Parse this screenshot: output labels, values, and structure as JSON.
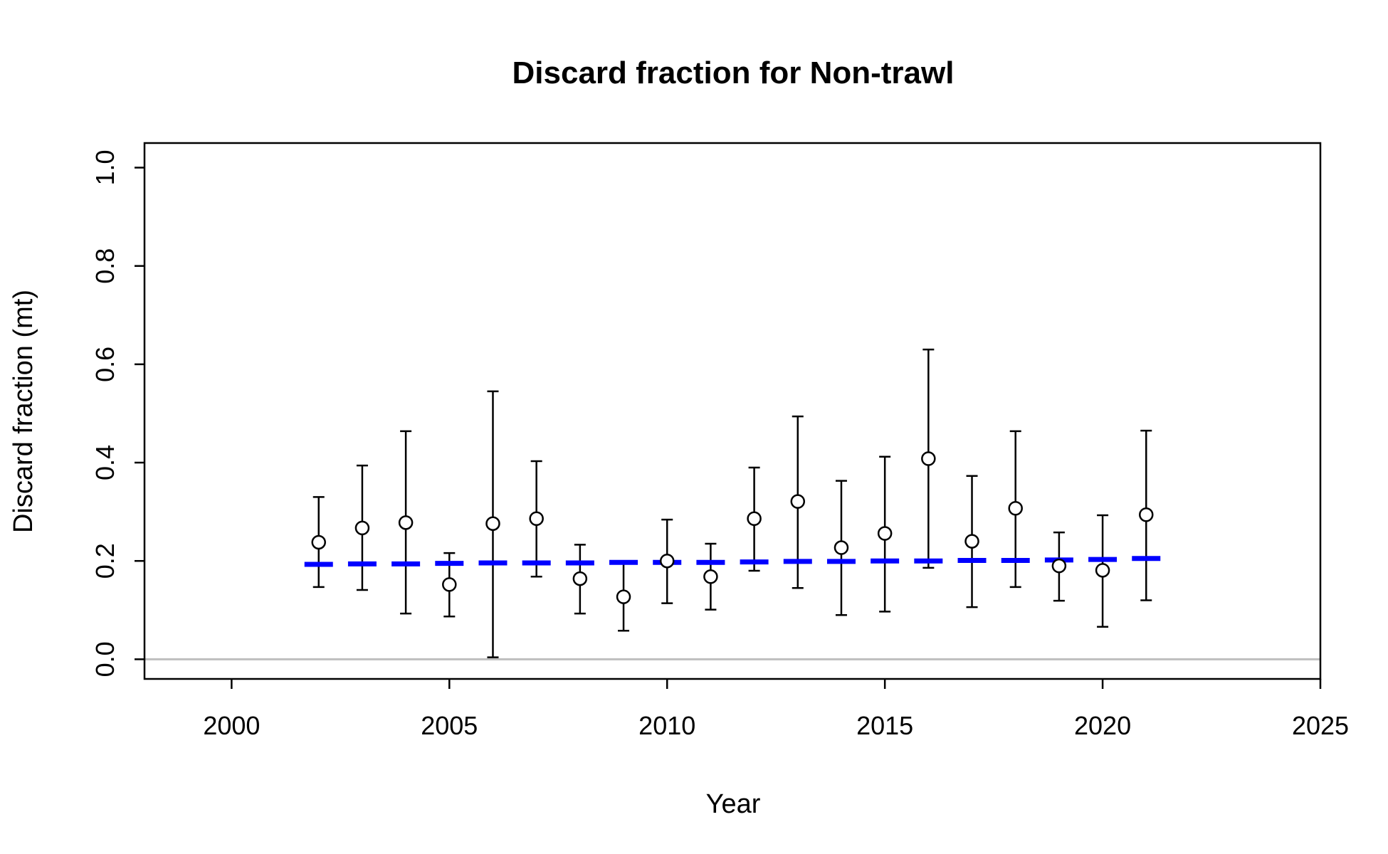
{
  "chart_data": {
    "type": "scatter",
    "title": "Discard fraction for Non-trawl",
    "xlabel": "Year",
    "ylabel": "Discard fraction (mt)",
    "xlim": [
      1998,
      2025
    ],
    "ylim": [
      -0.04,
      1.05
    ],
    "xticks": [
      "2000",
      "2005",
      "2010",
      "2015",
      "2020",
      "2025"
    ],
    "yticks": [
      "0.0",
      "0.2",
      "0.4",
      "0.6",
      "0.8",
      "1.0"
    ],
    "reference_line": {
      "y": 0.0,
      "color": "#bebebe"
    },
    "colors": {
      "observed": "#000000",
      "expected": "#0000ff",
      "frame": "#000000"
    },
    "series": [
      {
        "kind": "observed",
        "x": [
          2002,
          2003,
          2004,
          2005,
          2006,
          2007,
          2008,
          2009,
          2010,
          2011,
          2012,
          2013,
          2014,
          2015,
          2016,
          2017,
          2018,
          2019,
          2020,
          2021
        ],
        "y": [
          0.238,
          0.267,
          0.278,
          0.152,
          0.276,
          0.286,
          0.164,
          0.127,
          0.2,
          0.168,
          0.286,
          0.321,
          0.227,
          0.256,
          0.408,
          0.24,
          0.307,
          0.19,
          0.181,
          0.294
        ],
        "lower": [
          0.147,
          0.141,
          0.093,
          0.087,
          0.004,
          0.168,
          0.093,
          0.058,
          0.114,
          0.101,
          0.18,
          0.145,
          0.09,
          0.097,
          0.186,
          0.106,
          0.147,
          0.119,
          0.066,
          0.12
        ],
        "upper": [
          0.33,
          0.394,
          0.464,
          0.216,
          0.545,
          0.403,
          0.233,
          0.199,
          0.284,
          0.235,
          0.39,
          0.494,
          0.363,
          0.412,
          0.63,
          0.373,
          0.464,
          0.258,
          0.293,
          0.465
        ]
      },
      {
        "kind": "expected",
        "x": [
          2002,
          2003,
          2004,
          2005,
          2006,
          2007,
          2008,
          2009,
          2010,
          2011,
          2012,
          2013,
          2014,
          2015,
          2016,
          2017,
          2018,
          2019,
          2020,
          2021
        ],
        "y": [
          0.193,
          0.194,
          0.194,
          0.195,
          0.196,
          0.196,
          0.196,
          0.197,
          0.197,
          0.197,
          0.198,
          0.199,
          0.199,
          0.2,
          0.2,
          0.201,
          0.201,
          0.202,
          0.203,
          0.205
        ]
      }
    ]
  }
}
